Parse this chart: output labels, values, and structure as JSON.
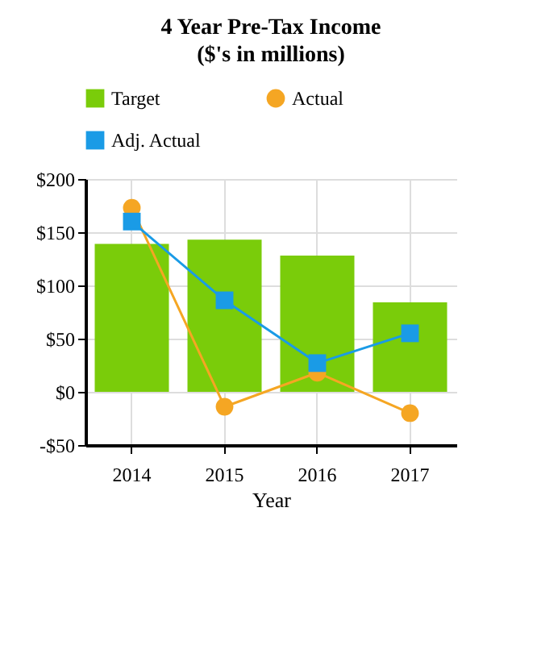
{
  "chart_data": {
    "type": "bar",
    "title": "4 Year Pre-Tax Income",
    "subtitle": "($'s in millions)",
    "xlabel": "Year",
    "categories": [
      "2014",
      "2015",
      "2016",
      "2017"
    ],
    "series": [
      {
        "name": "Target",
        "color": "#7acc0a",
        "values": [
          139,
          143,
          128,
          84
        ]
      },
      {
        "name": "Actual",
        "type": "line",
        "color": "#f5a623",
        "marker": "circle",
        "values": [
          173,
          -14,
          18,
          -20
        ]
      },
      {
        "name": "Adj. Actual",
        "type": "line",
        "color": "#1a9be6",
        "marker": "square",
        "values": [
          160,
          86,
          27,
          55
        ]
      }
    ],
    "ylim": [
      -50,
      200
    ],
    "yticks": [
      {
        "value": -50,
        "label": "-$50"
      },
      {
        "value": 0,
        "label": "$0"
      },
      {
        "value": 50,
        "label": "$50"
      },
      {
        "value": 100,
        "label": "$100"
      },
      {
        "value": 150,
        "label": "$150"
      },
      {
        "value": 200,
        "label": "$200"
      }
    ],
    "grid": true,
    "legend": "top"
  }
}
